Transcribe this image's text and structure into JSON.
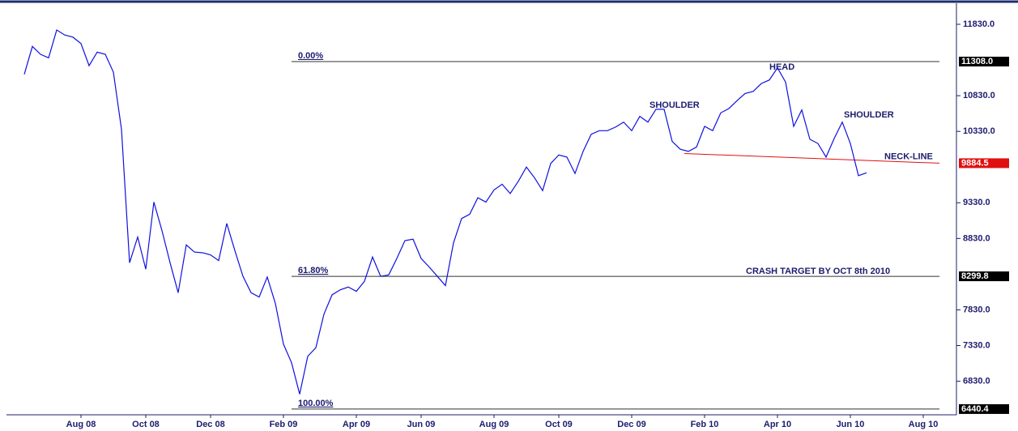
{
  "chart_data": {
    "type": "line",
    "color": "#1010e0",
    "categories": [
      null,
      null,
      null,
      null,
      null,
      null,
      null,
      "Aug 08",
      null,
      null,
      null,
      null,
      null,
      null,
      null,
      "Oct 08",
      null,
      null,
      null,
      null,
      null,
      null,
      null,
      "Dec 08",
      null,
      null,
      null,
      null,
      null,
      null,
      null,
      null,
      "Feb 09",
      null,
      null,
      null,
      null,
      null,
      null,
      null,
      null,
      "Apr 09",
      null,
      null,
      null,
      null,
      null,
      null,
      null,
      "Jun 09",
      null,
      null,
      null,
      null,
      null,
      null,
      null,
      null,
      "Aug 09",
      null,
      null,
      null,
      null,
      null,
      null,
      null,
      "Oct 09",
      null,
      null,
      null,
      null,
      null,
      null,
      null,
      null,
      "Dec 09",
      null,
      null,
      null,
      null,
      null,
      null,
      null,
      null,
      "Feb 10",
      null,
      null,
      null,
      null,
      null,
      null,
      null,
      null,
      "Apr 10",
      null,
      null,
      null,
      null,
      null,
      null,
      null,
      null,
      "Jun 10",
      null,
      null,
      null,
      null,
      null,
      null,
      null,
      null,
      "Aug 10",
      null,
      null,
      null
    ],
    "values": [
      11130,
      11520,
      11410,
      11360,
      11750,
      11680,
      11650,
      11560,
      11250,
      11440,
      11410,
      11160,
      10360,
      8490,
      8850,
      8400,
      9340,
      8940,
      8490,
      8070,
      8740,
      8640,
      8630,
      8600,
      8520,
      9040,
      8660,
      8300,
      8070,
      8010,
      8290,
      7920,
      7350,
      7090,
      6650,
      7180,
      7300,
      7770,
      8040,
      8110,
      8150,
      8090,
      8230,
      8570,
      8300,
      8320,
      8550,
      8800,
      8820,
      8550,
      8430,
      8300,
      8170,
      8770,
      9110,
      9170,
      9400,
      9340,
      9510,
      9590,
      9460,
      9630,
      9830,
      9680,
      9500,
      9880,
      10000,
      9970,
      9740,
      10050,
      10290,
      10340,
      10340,
      10390,
      10460,
      10340,
      10540,
      10460,
      10640,
      10640,
      10190,
      10080,
      10050,
      10110,
      10400,
      10340,
      10590,
      10650,
      10760,
      10860,
      10890,
      11000,
      11050,
      11220,
      11020,
      10400,
      10630,
      10220,
      10160,
      9970,
      10230,
      10460,
      10160,
      9710,
      9750,
      null,
      null,
      null,
      null,
      null,
      null,
      null,
      null,
      null,
      null
    ],
    "ylim": [
      6360,
      12125
    ],
    "yticks": [
      {
        "value": 6830,
        "label": "6830.0"
      },
      {
        "value": 7330,
        "label": "7330.0"
      },
      {
        "value": 7830,
        "label": "7830.0"
      },
      {
        "value": 8830,
        "label": "8830.0"
      },
      {
        "value": 9330,
        "label": "9330.0"
      },
      {
        "value": 10330,
        "label": "10330.0"
      },
      {
        "value": 10830,
        "label": "10830.0"
      },
      {
        "value": 11830,
        "label": "11830.0"
      }
    ],
    "marker_ticks": [
      {
        "value": 11308,
        "label": "11308.0",
        "color": "#000000"
      },
      {
        "value": 9884.5,
        "label": "9884.5",
        "color": "#e01010"
      },
      {
        "value": 8299.8,
        "label": "8299.8",
        "color": "#000000"
      },
      {
        "value": 6440.4,
        "label": "6440.4",
        "color": "#000000"
      }
    ],
    "levels": [
      {
        "label": "0.00%",
        "value": 11308
      },
      {
        "label": "61.80%",
        "value": 8299.8
      },
      {
        "label": "100.00%",
        "value": 6440.4
      }
    ],
    "neckline": {
      "label": "NECK-LINE",
      "values": [
        10020,
        9884.5
      ],
      "color": "#e01010"
    },
    "annotations": [
      "SHOULDER",
      "HEAD",
      "SHOULDER",
      "CRASH TARGET BY OCT 8th 2010"
    ]
  }
}
